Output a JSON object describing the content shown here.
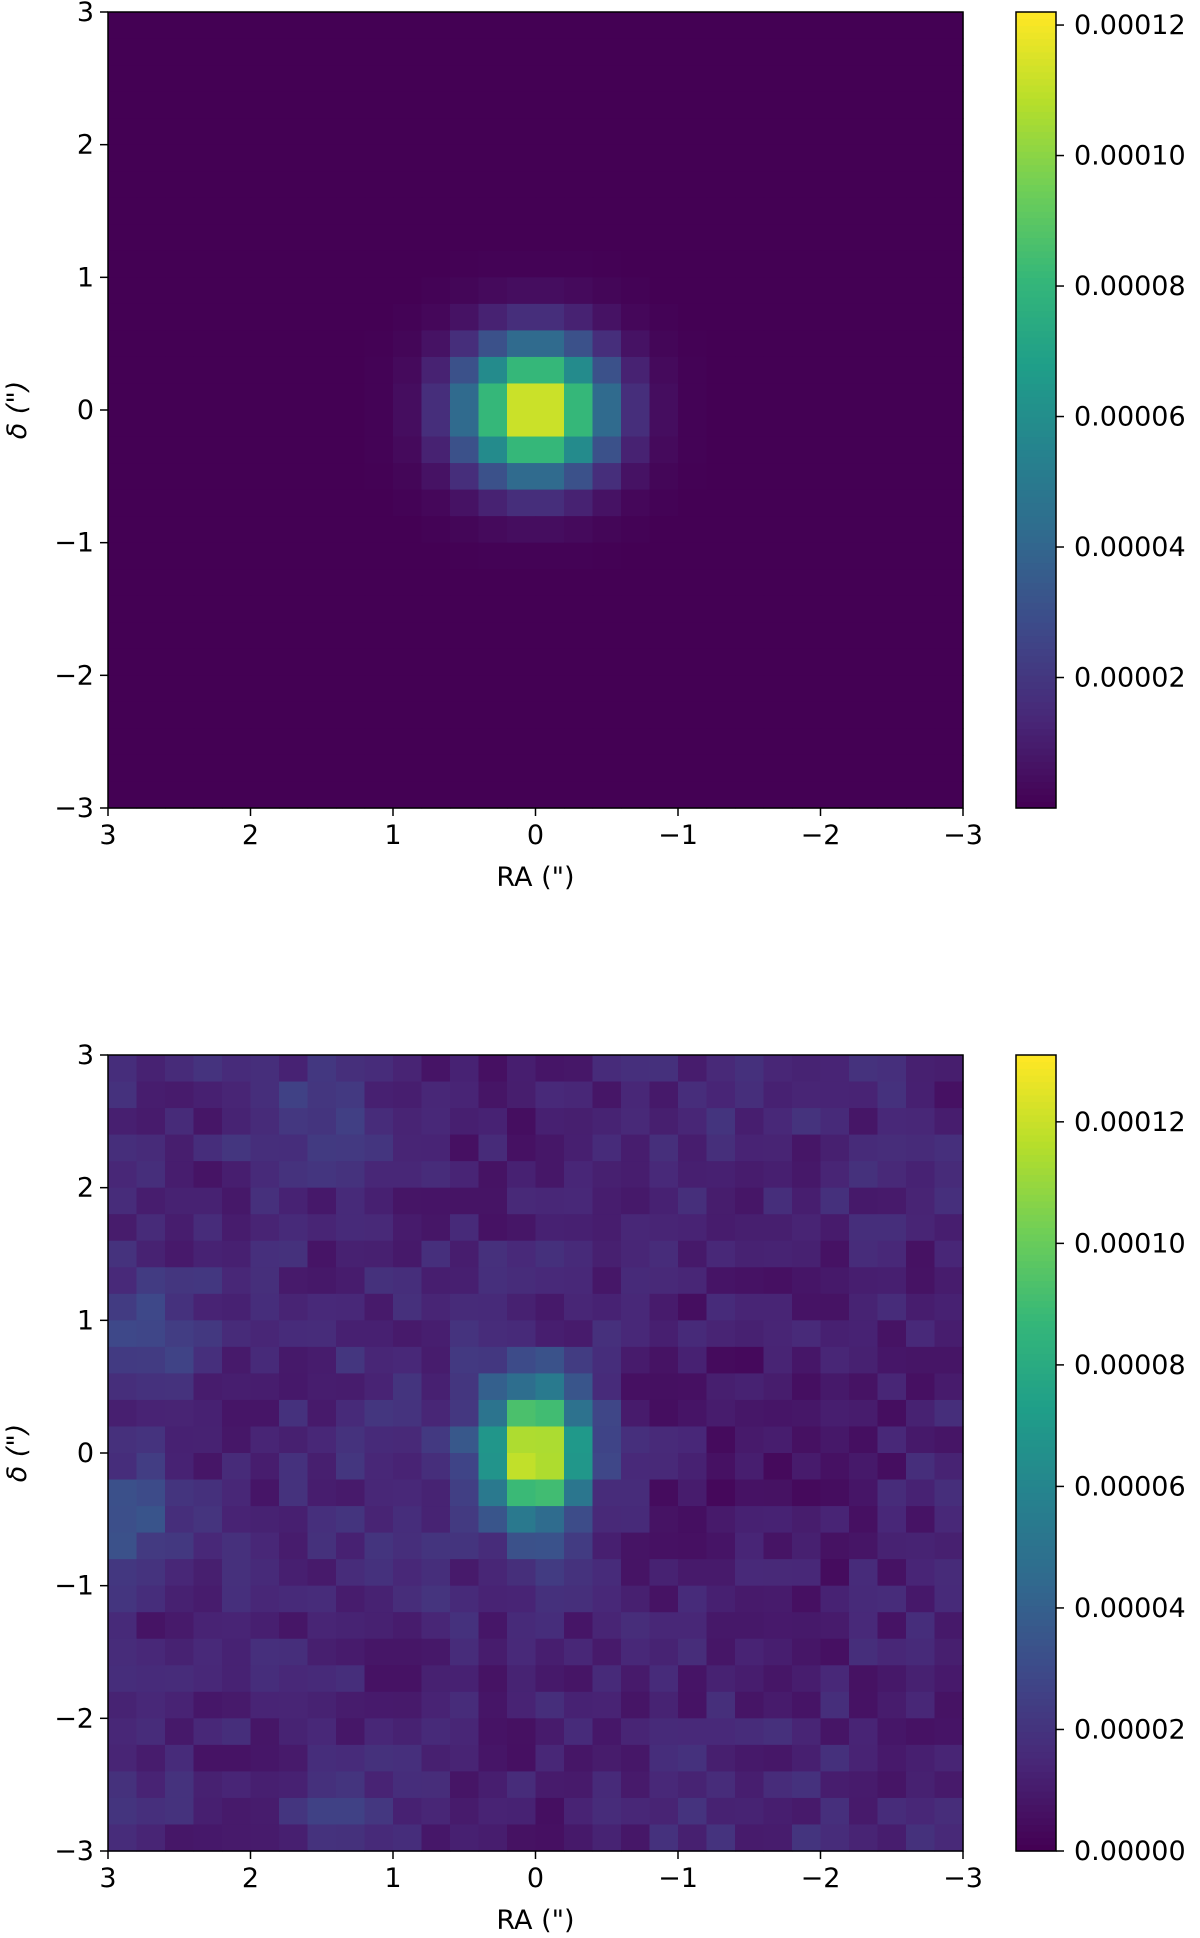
{
  "colormap": {
    "name": "viridis",
    "stops": [
      "#440154",
      "#482878",
      "#3e4989",
      "#31688e",
      "#26828e",
      "#1f9e89",
      "#35b779",
      "#6ece58",
      "#b5de2b",
      "#fde725"
    ]
  },
  "chart_data": [
    {
      "type": "heatmap",
      "title": "",
      "xlabel": "RA (\")",
      "ylabel": "δ (\")",
      "xlim": [
        3,
        -3
      ],
      "ylim": [
        -3,
        3
      ],
      "x_ticks": [
        3,
        2,
        1,
        0,
        -1,
        -2,
        -3
      ],
      "x_tick_labels": [
        "3",
        "2",
        "1",
        "0",
        "−1",
        "−2",
        "−3"
      ],
      "y_ticks": [
        3,
        2,
        1,
        0,
        -1,
        -2,
        -3
      ],
      "y_tick_labels": [
        "3",
        "2",
        "1",
        "0",
        "−1",
        "−2",
        "−3"
      ],
      "grid": false,
      "pixel_size_arcsec": 0.2,
      "colorbar": {
        "min": 0.0,
        "max": 0.000122,
        "ticks": [
          2e-05,
          4e-05,
          6e-05,
          8e-05,
          0.0001,
          0.00012
        ],
        "tick_labels": [
          "0.00002",
          "0.00004",
          "0.00006",
          "0.00008",
          "0.00010",
          "0.00012"
        ]
      },
      "model": {
        "kind": "gaussian",
        "peak": 0.000122,
        "center_ra": 0.0,
        "center_dec": 0.0,
        "sigma_ra": 0.35,
        "sigma_dec": 0.35
      }
    },
    {
      "type": "heatmap",
      "title": "",
      "xlabel": "RA (\")",
      "ylabel": "δ (\")",
      "xlim": [
        3,
        -3
      ],
      "ylim": [
        -3,
        3
      ],
      "x_ticks": [
        3,
        2,
        1,
        0,
        -1,
        -2,
        -3
      ],
      "x_tick_labels": [
        "3",
        "2",
        "1",
        "0",
        "−1",
        "−2",
        "−3"
      ],
      "y_ticks": [
        3,
        2,
        1,
        0,
        -1,
        -2,
        -3
      ],
      "y_tick_labels": [
        "3",
        "2",
        "1",
        "0",
        "−1",
        "−2",
        "−3"
      ],
      "grid": false,
      "pixel_size_arcsec": 0.2,
      "colorbar": {
        "min": 0.0,
        "max": 0.000131,
        "ticks": [
          0.0,
          2e-05,
          4e-05,
          6e-05,
          8e-05,
          0.0001,
          0.00012
        ],
        "tick_labels": [
          "0.00000",
          "0.00002",
          "0.00004",
          "0.00006",
          "0.00008",
          "0.00010",
          "0.00012"
        ]
      },
      "model": {
        "kind": "gaussian_plus_noise",
        "peak": 0.000115,
        "center_ra": 0.0,
        "center_dec": 0.0,
        "sigma_ra": 0.25,
        "sigma_dec": 0.35,
        "background": 1.2e-05,
        "noise_amplitude": 6e-06,
        "hotspots": [
          {
            "ra": 2.7,
            "dec": 0.9,
            "value": 2.8e-05
          },
          {
            "ra": 1.5,
            "dec": 2.5,
            "value": 2.5e-05
          },
          {
            "ra": 1.3,
            "dec": -2.7,
            "value": 2.4e-05
          },
          {
            "ra": 2.9,
            "dec": -0.5,
            "value": 3.6e-05
          }
        ]
      }
    }
  ]
}
